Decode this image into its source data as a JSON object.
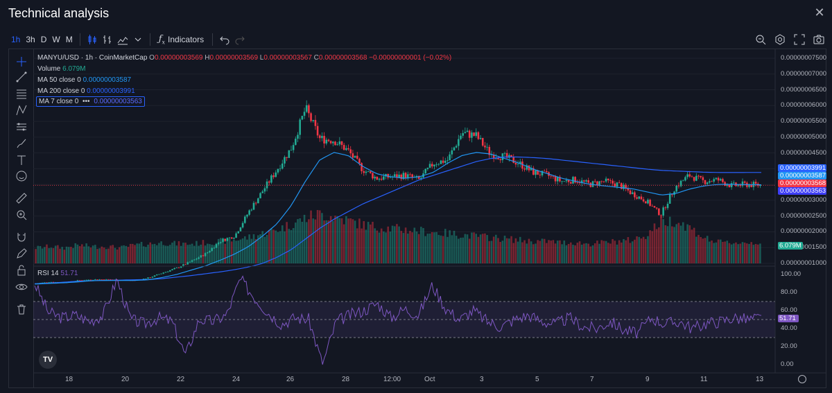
{
  "window": {
    "title": "Technical analysis"
  },
  "toolbar": {
    "timeframes": [
      "1h",
      "3h",
      "D",
      "W",
      "M"
    ],
    "active_timeframe": "1h",
    "indicators_label": "Indicators"
  },
  "legend": {
    "symbol": "MANYU/USD · 1h · CoinMarketCap",
    "o_label": "O",
    "o": "0.00000003569",
    "h_label": "H",
    "h": "0.00000003569",
    "l_label": "L",
    "l": "0.00000003567",
    "c_label": "C",
    "c": "0.00000003568",
    "change": "−0.00000000001 (−0.02%)",
    "volume_label": "Volume",
    "volume_value": "6.079M",
    "ma50_label": "MA 50 close 0",
    "ma50_value": "0.00000003587",
    "ma200_label": "MA 200 close 0",
    "ma200_value": "0.00000003991",
    "ma7_label": "MA 7 close 0",
    "ma7_more": "•••",
    "ma7_value": "0.00000003563",
    "rsi_label": "RSI 14",
    "rsi_value": "51.71"
  },
  "price_axis": {
    "labels": [
      "0.00000007500",
      "0.00000007000",
      "0.00000006500",
      "0.00000006000",
      "0.00000005500",
      "0.00000005000",
      "0.00000004500",
      "0.00000004000",
      "0.00000003500",
      "0.00000003000",
      "0.00000002500",
      "0.00000002000",
      "0.00000001500",
      "0.00000001000"
    ],
    "boxes": {
      "ma200": "0.00000003991",
      "ma50": "0.00000003587",
      "last": "0.00000003568",
      "ma7": "0.00000003563",
      "volume": "6.079M"
    }
  },
  "rsi_axis": {
    "labels": [
      "100.00",
      "80.00",
      "60.00",
      "40.00",
      "20.00",
      "0.00"
    ],
    "value_box": "51.71"
  },
  "time_axis": {
    "labels": [
      "18",
      "20",
      "22",
      "24",
      "26",
      "28",
      "12:00",
      "Oct",
      "3",
      "5",
      "7",
      "9",
      "11",
      "13"
    ]
  },
  "colors": {
    "up": "#22ab94",
    "down": "#f23645",
    "ma50": "#2196f3",
    "ma200": "#2962ff",
    "ma7": "#5b6bff",
    "rsi": "#7e57c2",
    "bg": "#131722"
  },
  "chart_data": {
    "type": "candlestick",
    "y_axis_range": [
      1e-08,
      7.75e-08
    ],
    "rsi_range": [
      0,
      100
    ],
    "rsi_bands": [
      30,
      70
    ],
    "series_path": [
      3.4e-09,
      3.9e-09,
      3.7e-09,
      4.4e-09,
      4.7e-09,
      4.7e-09,
      4.5e-09,
      4.4e-09,
      5.3e-09,
      7e-09,
      8.6e-09,
      1.08e-08,
      1.33e-08,
      1.74e-08,
      1.9e-08,
      2.7e-08,
      3.4e-08,
      4.1e-08,
      4.8e-08,
      6.1e-08,
      5.1e-08,
      5.05e-08,
      4.7e-08,
      4.1e-08,
      3.8e-08,
      3.85e-08,
      3.9e-08,
      3.75e-08,
      4.3e-08,
      4.4e-08,
      5.3e-08,
      5.2e-08,
      4.6e-08,
      4.5e-08,
      4.3e-08,
      4e-08,
      3.9e-08,
      3.7e-08,
      3.75e-08,
      3.6e-08,
      3.7e-08,
      3.6e-08,
      3.3e-08,
      3.05e-08,
      2.6e-08,
      3.5e-08,
      3.9e-08,
      3.7e-08,
      3.75e-08,
      3.55e-08,
      3.6e-08,
      3.57e-08
    ],
    "ma50_path": [
      3.2e-09,
      3.4e-09,
      3.6e-09,
      3.9e-09,
      4.3e-09,
      4.4e-09,
      4.4e-09,
      4.4e-09,
      4.6e-09,
      5.4e-09,
      6.4e-09,
      7.8e-09,
      9.2e-09,
      1.1e-08,
      1.3e-08,
      1.55e-08,
      1.9e-08,
      2.3e-08,
      2.9e-08,
      3.7e-08,
      4.4e-08,
      4.65e-08,
      4.55e-08,
      4.2e-08,
      3.95e-08,
      3.85e-08,
      3.8e-08,
      3.85e-08,
      4e-08,
      4.3e-08,
      4.55e-08,
      4.65e-08,
      4.6e-08,
      4.45e-08,
      4.3e-08,
      4.1e-08,
      3.95e-08,
      3.8e-08,
      3.7e-08,
      3.6e-08,
      3.55e-08,
      3.5e-08,
      3.45e-08,
      3.35e-08,
      3.25e-08,
      3.3e-08,
      3.45e-08,
      3.55e-08,
      3.6e-08,
      3.6e-08,
      3.59e-08,
      3.587e-08
    ],
    "ma200_path": [
      3.3e-09,
      3.5e-09,
      3.8e-09,
      4.1e-09,
      4.3e-09,
      4.4e-09,
      4.5e-09,
      4.6e-09,
      4.7e-09,
      5e-09,
      5.5e-09,
      6e-09,
      6.6e-09,
      7.2e-09,
      7.9e-09,
      8.8e-09,
      1e-08,
      1.2e-08,
      1.45e-08,
      1.8e-08,
      2.15e-08,
      2.45e-08,
      2.7e-08,
      2.95e-08,
      3.15e-08,
      3.35e-08,
      3.55e-08,
      3.75e-08,
      3.9e-08,
      4.05e-08,
      4.2e-08,
      4.35e-08,
      4.45e-08,
      4.5e-08,
      4.5e-08,
      4.48e-08,
      4.45e-08,
      4.4e-08,
      4.35e-08,
      4.3e-08,
      4.25e-08,
      4.2e-08,
      4.15e-08,
      4.1e-08,
      4.06e-08,
      4.04e-08,
      4.02e-08,
      4e-08,
      3.99e-08,
      3.99e-08,
      3.991e-08,
      3.991e-08
    ],
    "rsi_path": [
      90,
      58,
      52,
      55,
      48,
      55,
      95,
      50,
      45,
      52,
      48,
      10,
      50,
      48,
      55,
      95,
      75,
      58,
      45,
      52,
      50,
      0,
      48,
      55,
      60,
      68,
      52,
      62,
      55,
      88,
      62,
      50,
      60,
      48,
      42,
      50,
      55,
      48,
      45,
      52,
      42,
      40,
      48,
      38,
      35,
      52,
      45,
      48,
      40,
      46,
      48,
      52,
      50,
      51.71
    ],
    "volume_path": [
      1.2,
      1.3,
      1.2,
      1.4,
      1.3,
      1.3,
      1.2,
      1.4,
      1.5,
      1.6,
      1.5,
      1.5,
      1.6,
      1.7,
      1.8,
      2.0,
      2.3,
      2.6,
      3.0,
      3.5,
      3.8,
      3.6,
      3.3,
      3.0,
      2.8,
      2.7,
      2.6,
      2.5,
      2.4,
      2.3,
      2.2,
      2.1,
      2.0,
      1.9,
      1.8,
      1.7,
      1.7,
      1.6,
      1.6,
      1.5,
      1.6,
      1.7,
      1.8,
      2.2,
      3.2,
      3.3,
      2.8,
      2.0,
      1.6,
      1.6,
      1.6,
      1.6
    ]
  }
}
